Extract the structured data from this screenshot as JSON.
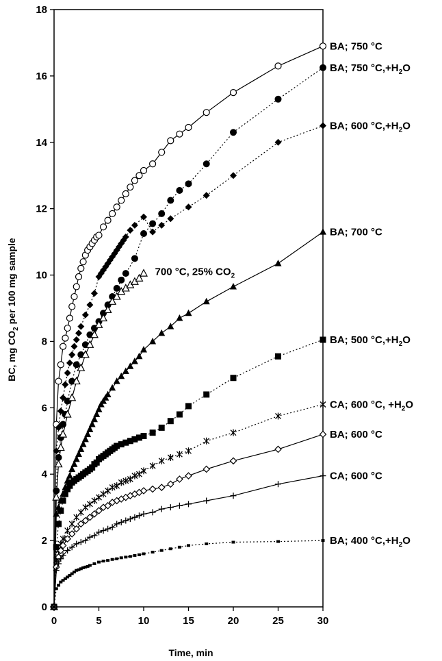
{
  "chart_data": {
    "type": "line",
    "title": "",
    "xlabel": "Time, min",
    "ylabel": {
      "prefix": "BC, mg CO",
      "sub": "2",
      "suffix": " per 100 mg sample"
    },
    "xlim": [
      0,
      30
    ],
    "ylim": [
      0,
      18
    ],
    "x_ticks": [
      0,
      5,
      10,
      15,
      20,
      25,
      30
    ],
    "y_ticks": [
      0,
      2,
      4,
      6,
      8,
      10,
      12,
      14,
      16,
      18
    ],
    "grid": false,
    "legend": "labels at line ends",
    "series": [
      {
        "name": "BA; 750 °C",
        "label_parts": [
          "BA; 750 °C"
        ],
        "label_at": [
          30,
          16.9
        ],
        "marker": "open-circle",
        "line": "solid",
        "x": [
          0,
          0.25,
          0.5,
          0.75,
          1,
          1.25,
          1.5,
          1.75,
          2,
          2.25,
          2.5,
          2.75,
          3,
          3.25,
          3.5,
          3.75,
          4,
          4.25,
          4.5,
          4.75,
          5,
          5.5,
          6,
          6.5,
          7,
          7.5,
          8,
          8.5,
          9,
          9.5,
          10,
          11,
          12,
          13,
          14,
          15,
          17,
          20,
          25,
          30
        ],
        "y": [
          0,
          5.5,
          6.8,
          7.3,
          7.85,
          8.1,
          8.4,
          8.7,
          9.05,
          9.35,
          9.65,
          9.95,
          10.2,
          10.4,
          10.6,
          10.75,
          10.85,
          10.95,
          11.05,
          11.15,
          11.2,
          11.45,
          11.65,
          11.85,
          12.05,
          12.25,
          12.45,
          12.65,
          12.85,
          13.0,
          13.15,
          13.35,
          13.7,
          14.05,
          14.25,
          14.45,
          14.9,
          15.5,
          16.3,
          16.9
        ]
      },
      {
        "name": "BA; 750 °C,+H2O",
        "label_parts": [
          "BA; 750 °C,+H",
          "2",
          "O"
        ],
        "label_at": [
          30,
          16.25
        ],
        "marker": "filled-circle",
        "line": "dotted",
        "x": [
          0,
          0.25,
          0.5,
          0.75,
          1,
          1.25,
          1.5,
          2,
          2.5,
          3,
          3.5,
          4,
          4.5,
          5,
          5.5,
          6,
          6.5,
          7,
          7.5,
          8,
          9,
          10,
          11,
          12,
          13,
          14,
          15,
          17,
          20,
          25,
          30
        ],
        "y": [
          0,
          3.5,
          4.5,
          5.1,
          5.5,
          5.8,
          6.2,
          6.8,
          7.3,
          7.6,
          7.9,
          8.2,
          8.4,
          8.6,
          8.85,
          9.1,
          9.35,
          9.6,
          9.85,
          10.05,
          10.5,
          11.25,
          11.55,
          11.85,
          12.25,
          12.55,
          12.75,
          13.35,
          14.3,
          15.3,
          16.25
        ]
      },
      {
        "name": "BA; 600 °C,+H2O",
        "label_parts": [
          "BA; 600 °C,+H",
          "2",
          "O"
        ],
        "label_at": [
          30,
          14.5
        ],
        "marker": "filled-diamond",
        "line": "dotted",
        "x": [
          0,
          0.25,
          0.5,
          0.75,
          1,
          1.25,
          1.5,
          1.75,
          2,
          2.25,
          2.5,
          2.75,
          3,
          3.5,
          4,
          4.5,
          5,
          5.25,
          5.5,
          5.75,
          6,
          6.25,
          6.5,
          6.75,
          7,
          7.25,
          7.5,
          7.75,
          8,
          8.5,
          9,
          10,
          11,
          12,
          13,
          15,
          17,
          20,
          25,
          30
        ],
        "y": [
          0,
          4.7,
          5.4,
          5.9,
          6.3,
          6.7,
          7.05,
          7.35,
          7.6,
          7.85,
          8.05,
          8.25,
          8.45,
          8.8,
          9.1,
          9.45,
          9.95,
          10.05,
          10.15,
          10.25,
          10.35,
          10.45,
          10.55,
          10.65,
          10.75,
          10.85,
          10.95,
          11.05,
          11.15,
          11.35,
          11.5,
          11.75,
          11.3,
          11.5,
          11.7,
          12.05,
          12.4,
          13.0,
          14.0,
          14.5
        ]
      },
      {
        "name": "700 °C, 25% CO2",
        "label_parts": [
          "700 °C, 25% CO",
          "2",
          ""
        ],
        "label_at": [
          10.5,
          10.1
        ],
        "marker": "open-triangle",
        "line": "solid",
        "x": [
          0,
          0.25,
          0.5,
          0.75,
          1,
          1.5,
          2,
          2.5,
          3,
          3.5,
          4,
          4.5,
          5,
          5.5,
          6,
          6.5,
          7,
          7.5,
          8,
          8.5,
          9,
          9.5,
          10
        ],
        "y": [
          0,
          3.3,
          4.3,
          4.8,
          5.2,
          5.8,
          6.3,
          6.8,
          7.2,
          7.6,
          7.9,
          8.2,
          8.5,
          8.7,
          8.95,
          9.2,
          9.35,
          9.5,
          9.6,
          9.7,
          9.8,
          9.9,
          10.05
        ]
      },
      {
        "name": "BA; 700 °C",
        "label_parts": [
          "BA; 700 °C"
        ],
        "label_at": [
          30,
          11.3
        ],
        "marker": "filled-triangle",
        "line": "solid",
        "x": [
          0,
          0.25,
          0.5,
          0.75,
          1,
          1.25,
          1.5,
          1.75,
          2,
          2.25,
          2.5,
          2.75,
          3,
          3.25,
          3.5,
          3.75,
          4,
          4.25,
          4.5,
          4.75,
          5,
          5.25,
          5.5,
          5.75,
          6,
          6.5,
          7,
          7.5,
          8,
          8.5,
          9,
          9.5,
          10,
          11,
          12,
          13,
          14,
          15,
          17,
          20,
          25,
          30
        ],
        "y": [
          0,
          2.8,
          3.0,
          3.2,
          3.4,
          3.6,
          3.8,
          3.95,
          4.15,
          4.3,
          4.45,
          4.6,
          4.75,
          4.9,
          5.05,
          5.2,
          5.35,
          5.5,
          5.65,
          5.8,
          5.95,
          6.1,
          6.2,
          6.3,
          6.4,
          6.6,
          6.8,
          6.95,
          7.1,
          7.25,
          7.4,
          7.55,
          7.75,
          8.0,
          8.25,
          8.45,
          8.7,
          8.85,
          9.2,
          9.65,
          10.35,
          11.3
        ]
      },
      {
        "name": "BA; 500 °C,+H2O",
        "label_parts": [
          "BA; 500 °C,+H",
          "2",
          "O"
        ],
        "label_at": [
          30,
          8.05
        ],
        "marker": "filled-square",
        "line": "dotted",
        "x": [
          0,
          0.25,
          0.5,
          0.75,
          1,
          1.25,
          1.5,
          1.75,
          2,
          2.25,
          2.5,
          2.75,
          3,
          3.25,
          3.5,
          3.75,
          4,
          4.25,
          4.5,
          4.75,
          5,
          5.25,
          5.5,
          5.75,
          6,
          6.25,
          6.5,
          6.75,
          7,
          7.5,
          8,
          8.5,
          9,
          9.5,
          10,
          11,
          12,
          13,
          14,
          15,
          17,
          20,
          25,
          30
        ],
        "y": [
          0,
          1.8,
          2.5,
          2.9,
          3.2,
          3.4,
          3.55,
          3.65,
          3.75,
          3.8,
          3.85,
          3.9,
          3.95,
          4.0,
          4.05,
          4.1,
          4.15,
          4.2,
          4.3,
          4.35,
          4.45,
          4.5,
          4.55,
          4.6,
          4.65,
          4.7,
          4.75,
          4.8,
          4.85,
          4.9,
          4.95,
          5.0,
          5.05,
          5.1,
          5.15,
          5.25,
          5.4,
          5.6,
          5.8,
          6.05,
          6.4,
          6.9,
          7.55,
          8.05
        ]
      },
      {
        "name": "CA; 600 °C, +H2O",
        "label_parts": [
          "CA; 600 °C, +H",
          "2",
          "O"
        ],
        "label_at": [
          30,
          6.1
        ],
        "marker": "star",
        "line": "dotted",
        "x": [
          0,
          0.25,
          0.5,
          0.75,
          1,
          1.5,
          2,
          2.5,
          3,
          3.5,
          4,
          4.5,
          5,
          5.5,
          6,
          6.5,
          7,
          7.5,
          8,
          8.5,
          9,
          9.5,
          10,
          11,
          12,
          13,
          14,
          15,
          17,
          20,
          25,
          30
        ],
        "y": [
          0,
          1.4,
          1.7,
          1.9,
          2.05,
          2.3,
          2.5,
          2.7,
          2.85,
          3.0,
          3.1,
          3.2,
          3.3,
          3.4,
          3.5,
          3.6,
          3.65,
          3.75,
          3.8,
          3.85,
          3.95,
          4.0,
          4.1,
          4.25,
          4.4,
          4.5,
          4.6,
          4.7,
          5.0,
          5.25,
          5.75,
          6.1
        ]
      },
      {
        "name": "BA; 600 °C",
        "label_parts": [
          "BA; 600 °C"
        ],
        "label_at": [
          30,
          5.2
        ],
        "marker": "open-diamond",
        "line": "solid",
        "x": [
          0,
          0.25,
          0.5,
          0.75,
          1,
          1.5,
          2,
          2.5,
          3,
          3.5,
          4,
          4.5,
          5,
          5.5,
          6,
          6.5,
          7,
          7.5,
          8,
          8.5,
          9,
          9.5,
          10,
          11,
          12,
          13,
          14,
          15,
          17,
          20,
          25,
          30
        ],
        "y": [
          0,
          1.2,
          1.5,
          1.7,
          1.85,
          2.05,
          2.2,
          2.35,
          2.5,
          2.6,
          2.7,
          2.8,
          2.9,
          3.0,
          3.05,
          3.15,
          3.2,
          3.25,
          3.3,
          3.35,
          3.4,
          3.45,
          3.5,
          3.55,
          3.6,
          3.7,
          3.85,
          3.95,
          4.15,
          4.4,
          4.75,
          5.2
        ]
      },
      {
        "name": "CA; 600 °C",
        "label_parts": [
          "CA; 600 °C"
        ],
        "label_at": [
          30,
          3.95
        ],
        "marker": "plus",
        "line": "solid",
        "x": [
          0,
          0.25,
          0.5,
          0.75,
          1,
          1.5,
          2,
          2.5,
          3,
          3.5,
          4,
          4.5,
          5,
          5.5,
          6,
          6.5,
          7,
          7.5,
          8,
          8.5,
          9,
          9.5,
          10,
          11,
          12,
          13,
          14,
          15,
          17,
          20,
          25,
          30
        ],
        "y": [
          0,
          1.1,
          1.3,
          1.45,
          1.55,
          1.7,
          1.8,
          1.9,
          1.95,
          2.0,
          2.1,
          2.15,
          2.25,
          2.3,
          2.35,
          2.4,
          2.5,
          2.55,
          2.6,
          2.65,
          2.7,
          2.75,
          2.8,
          2.85,
          2.95,
          3.0,
          3.05,
          3.1,
          3.2,
          3.35,
          3.7,
          3.95
        ]
      },
      {
        "name": "BA; 400 °C,+H2O",
        "label_parts": [
          "BA; 400 °C,+H",
          "2",
          "O"
        ],
        "label_at": [
          30,
          2.0
        ],
        "marker": "small-square",
        "line": "dotted",
        "x": [
          0,
          0.25,
          0.5,
          0.75,
          1,
          1.25,
          1.5,
          1.75,
          2,
          2.25,
          2.5,
          2.75,
          3,
          3.25,
          3.5,
          3.75,
          4,
          4.5,
          5,
          5.5,
          6,
          6.5,
          7,
          7.5,
          8,
          8.5,
          9,
          9.5,
          10,
          11,
          12,
          13,
          14,
          15,
          17,
          20,
          25,
          30
        ],
        "y": [
          0,
          0.55,
          0.65,
          0.75,
          0.8,
          0.85,
          0.9,
          0.95,
          1.0,
          1.05,
          1.1,
          1.12,
          1.15,
          1.18,
          1.2,
          1.22,
          1.25,
          1.3,
          1.35,
          1.38,
          1.4,
          1.43,
          1.45,
          1.48,
          1.5,
          1.52,
          1.55,
          1.57,
          1.6,
          1.65,
          1.7,
          1.75,
          1.8,
          1.85,
          1.9,
          1.95,
          1.97,
          2.0
        ]
      }
    ]
  }
}
